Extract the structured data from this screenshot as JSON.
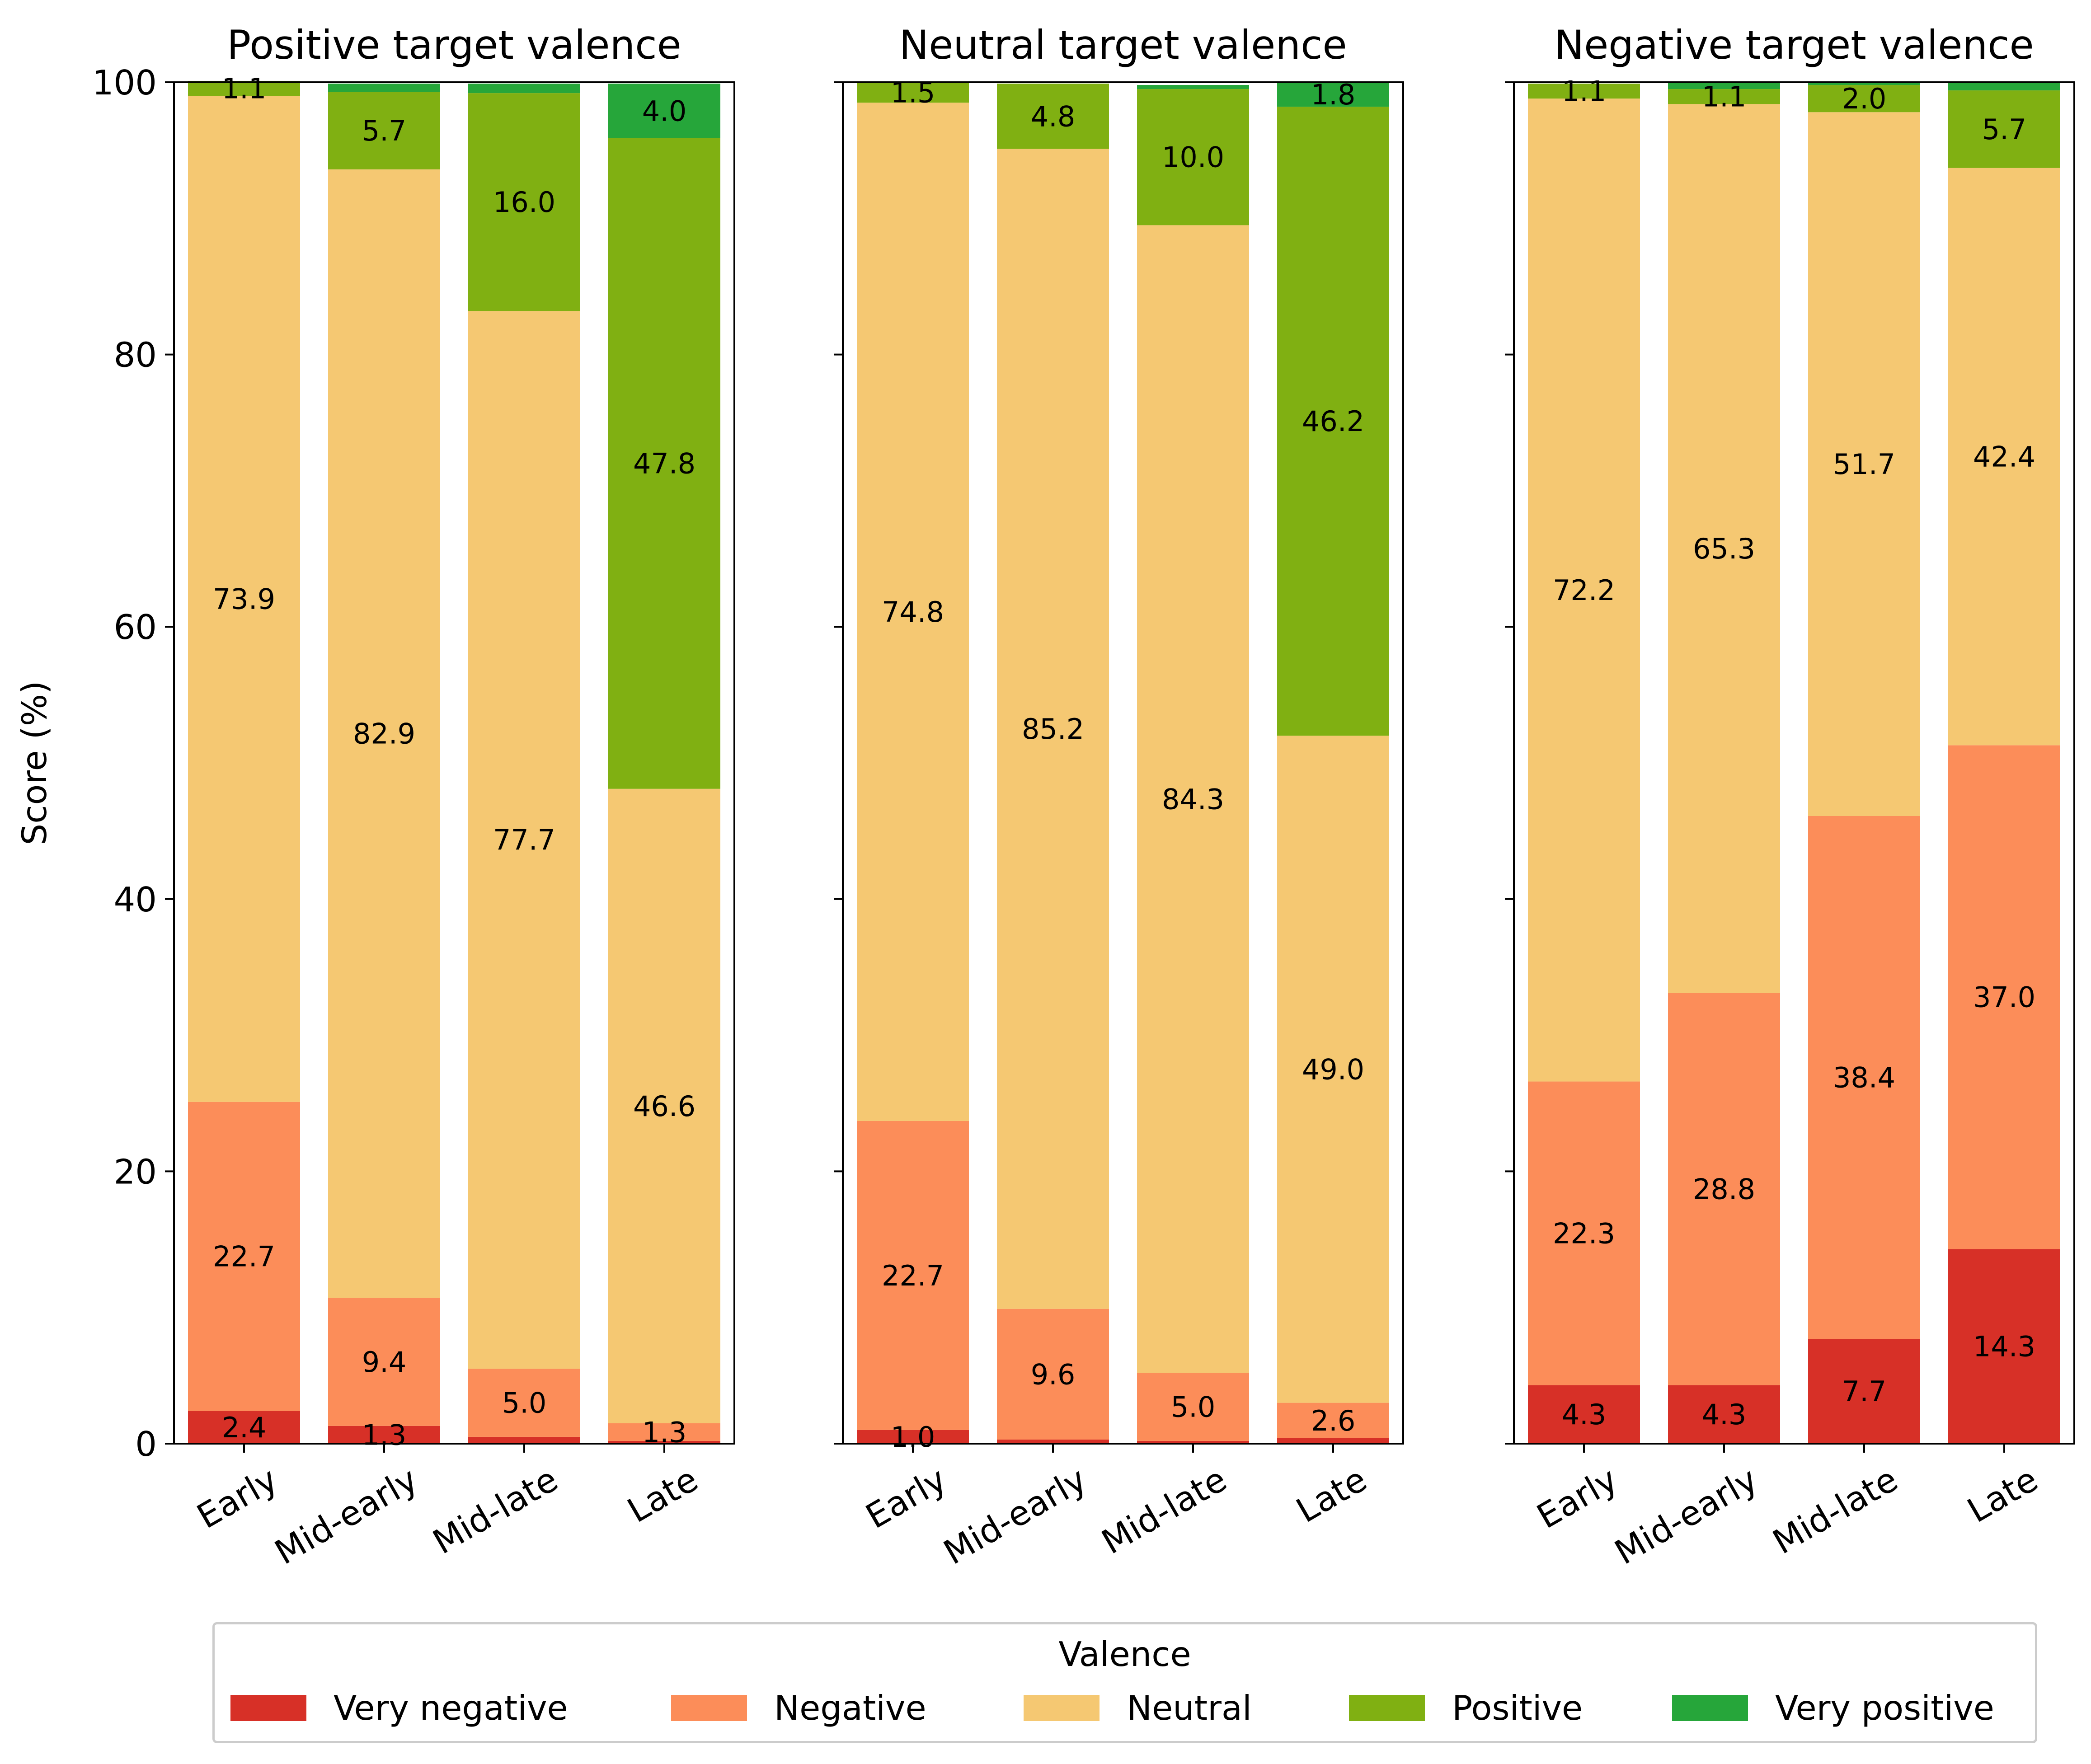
{
  "chart_data": {
    "type": "bar",
    "stacked": true,
    "ylabel": "Score (%)",
    "ylim": [
      0,
      100
    ],
    "yticks": [
      "0",
      "20",
      "40",
      "60",
      "80",
      "100"
    ],
    "categories": [
      "Early",
      "Mid-early",
      "Mid-late",
      "Late"
    ],
    "legend": {
      "title": "Valence",
      "placement": "bottom",
      "entries": [
        {
          "name": "Very negative",
          "color": "#d73027"
        },
        {
          "name": "Negative",
          "color": "#fc8d59"
        },
        {
          "name": "Neutral",
          "color": "#f5c872"
        },
        {
          "name": "Positive",
          "color": "#80b012"
        },
        {
          "name": "Very positive",
          "color": "#26a63a"
        }
      ]
    },
    "panels": [
      {
        "title": "Positive target valence",
        "series": [
          {
            "name": "Very negative",
            "values": [
              2.4,
              1.3,
              0.5,
              0.2
            ],
            "labels": [
              "2.4",
              "1.3",
              "",
              ""
            ]
          },
          {
            "name": "Negative",
            "values": [
              22.7,
              9.4,
              5.0,
              1.3
            ],
            "labels": [
              "22.7",
              "9.4",
              "5.0",
              "1.3"
            ]
          },
          {
            "name": "Neutral",
            "values": [
              73.9,
              82.9,
              77.7,
              46.6
            ],
            "labels": [
              "73.9",
              "82.9",
              "77.7",
              "46.6"
            ]
          },
          {
            "name": "Positive",
            "values": [
              1.1,
              5.7,
              16.0,
              47.8
            ],
            "labels": [
              "1.1",
              "5.7",
              "16.0",
              "47.8"
            ]
          },
          {
            "name": "Very positive",
            "values": [
              0.0,
              0.6,
              0.7,
              4.0
            ],
            "labels": [
              "",
              "",
              "",
              "4.0"
            ]
          }
        ]
      },
      {
        "title": "Neutral target valence",
        "series": [
          {
            "name": "Very negative",
            "values": [
              1.0,
              0.3,
              0.2,
              0.4
            ],
            "labels": [
              "1.0",
              "",
              "",
              ""
            ]
          },
          {
            "name": "Negative",
            "values": [
              22.7,
              9.6,
              5.0,
              2.6
            ],
            "labels": [
              "22.7",
              "9.6",
              "5.0",
              "2.6"
            ]
          },
          {
            "name": "Neutral",
            "values": [
              74.8,
              85.2,
              84.3,
              49.0
            ],
            "labels": [
              "74.8",
              "85.2",
              "84.3",
              "49.0"
            ]
          },
          {
            "name": "Positive",
            "values": [
              1.5,
              4.8,
              10.0,
              46.2
            ],
            "labels": [
              "1.5",
              "4.8",
              "10.0",
              "46.2"
            ]
          },
          {
            "name": "Very positive",
            "values": [
              0.0,
              0.0,
              0.3,
              1.8
            ],
            "labels": [
              "",
              "",
              "",
              "1.8"
            ]
          }
        ]
      },
      {
        "title": "Negative target valence",
        "series": [
          {
            "name": "Very negative",
            "values": [
              4.3,
              4.3,
              7.7,
              14.3
            ],
            "labels": [
              "4.3",
              "4.3",
              "7.7",
              "14.3"
            ]
          },
          {
            "name": "Negative",
            "values": [
              22.3,
              28.8,
              38.4,
              37.0
            ],
            "labels": [
              "22.3",
              "28.8",
              "38.4",
              "37.0"
            ]
          },
          {
            "name": "Neutral",
            "values": [
              72.2,
              65.3,
              51.7,
              42.4
            ],
            "labels": [
              "72.2",
              "65.3",
              "51.7",
              "42.4"
            ]
          },
          {
            "name": "Positive",
            "values": [
              1.1,
              1.1,
              2.0,
              5.7
            ],
            "labels": [
              "1.1",
              "1.1",
              "2.0",
              "5.7"
            ]
          },
          {
            "name": "Very positive",
            "values": [
              0.0,
              0.5,
              0.2,
              0.6
            ],
            "labels": [
              "",
              "",
              "",
              ""
            ]
          }
        ]
      }
    ]
  }
}
